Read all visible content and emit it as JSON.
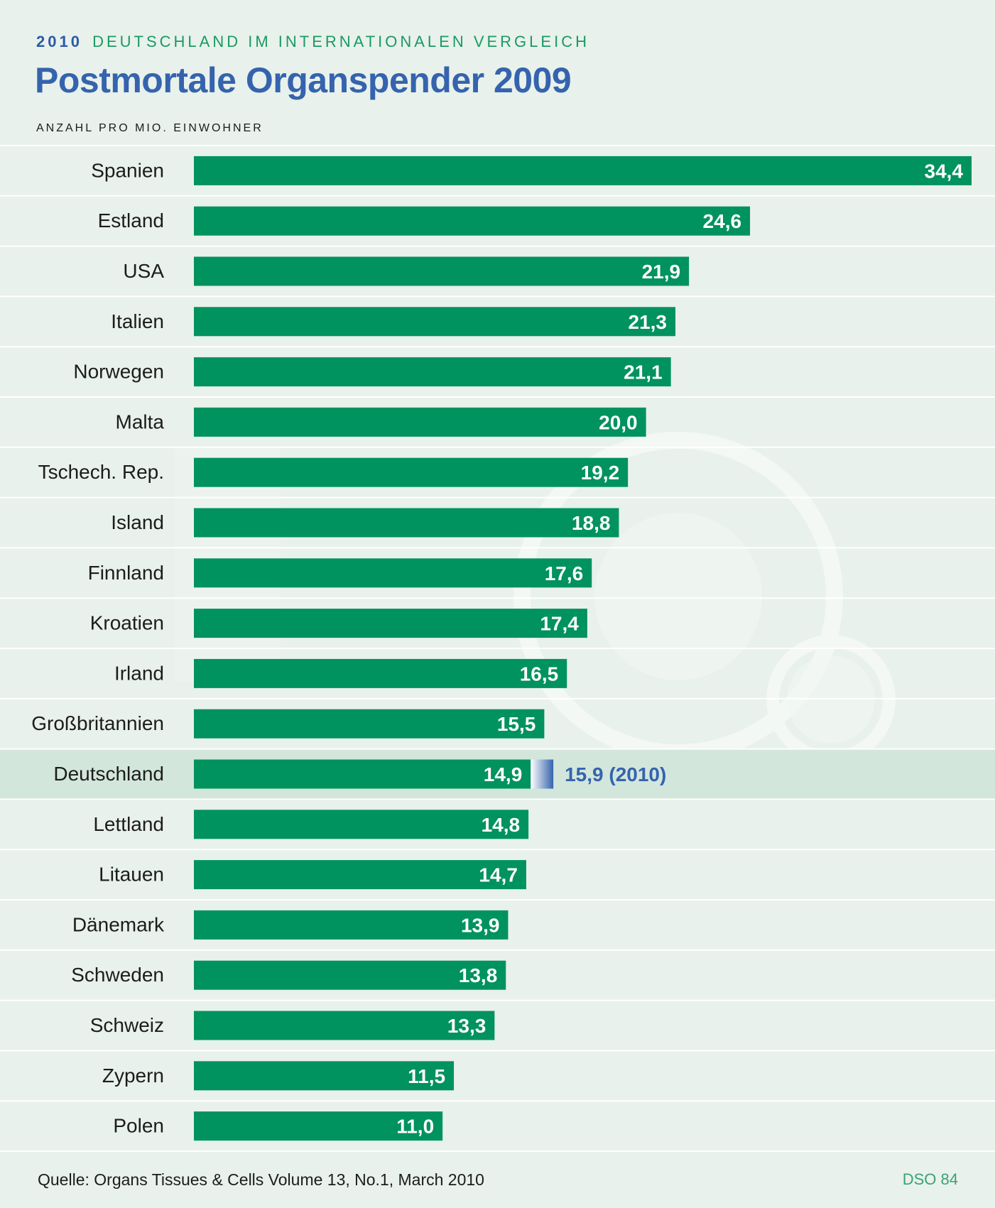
{
  "header": {
    "kicker_year": "2010",
    "kicker_text": "DEUTSCHLAND IM INTERNATIONALEN VERGLEICH",
    "title": "Postmortale Organspender 2009",
    "subtitle": "ANZAHL PRO MIO. EINWOHNER"
  },
  "footer": {
    "source": "Quelle: Organs Tissues & Cells Volume 13, No.1, March 2010",
    "code": "DSO 84"
  },
  "colors": {
    "background": "#e8f1eb",
    "bar": "#00925f",
    "highlight_row": "#d2e6dc",
    "accent_blue": "#3563ad",
    "separator": "#ffffff"
  },
  "chart_data": {
    "type": "bar",
    "orientation": "horizontal",
    "title": "Postmortale Organspender 2009",
    "ylabel": "ANZAHL PRO MIO. EINWOHNER",
    "categories": [
      "Spanien",
      "Estland",
      "USA",
      "Italien",
      "Norwegen",
      "Malta",
      "Tschech. Rep.",
      "Island",
      "Finnland",
      "Kroatien",
      "Irland",
      "Großbritannien",
      "Deutschland",
      "Lettland",
      "Litauen",
      "Dänemark",
      "Schweden",
      "Schweiz",
      "Zypern",
      "Polen"
    ],
    "values": [
      34.4,
      24.6,
      21.9,
      21.3,
      21.1,
      20.0,
      19.2,
      18.8,
      17.6,
      17.4,
      16.5,
      15.5,
      14.9,
      14.8,
      14.7,
      13.9,
      13.8,
      13.3,
      11.5,
      11.0
    ],
    "value_labels": [
      "34,4",
      "24,6",
      "21,9",
      "21,3",
      "21,1",
      "20,0",
      "19,2",
      "18,8",
      "17,6",
      "17,4",
      "16,5",
      "15,5",
      "14,9",
      "14,8",
      "14,7",
      "13,9",
      "13,8",
      "13,3",
      "11,5",
      "11,0"
    ],
    "xlim": [
      0,
      34.4
    ],
    "highlight": {
      "category": "Deutschland",
      "extra_value": 15.9,
      "extra_label": "15,9 (2010)"
    },
    "grid": false,
    "legend": "none"
  }
}
